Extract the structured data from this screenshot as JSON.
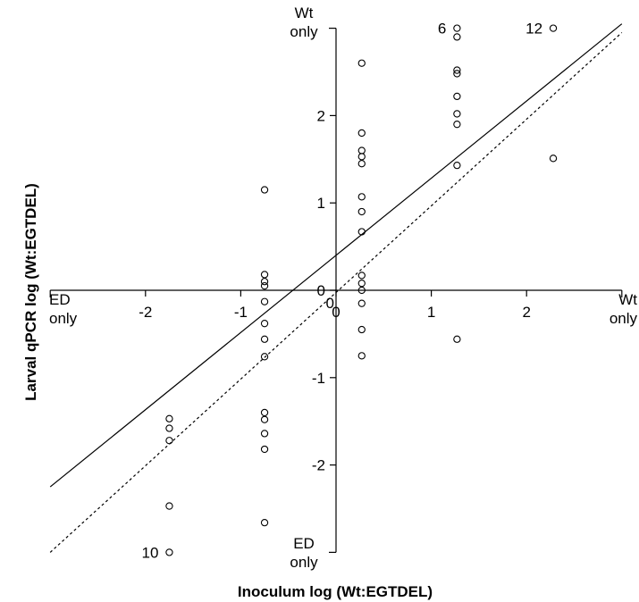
{
  "chart_data": {
    "type": "scatter",
    "xlabel": "Inoculum log (Wt:EGTDEL)",
    "ylabel": "Larval qPCR log (Wt:EGTDEL)",
    "xlim": [
      -3,
      3
    ],
    "ylim": [
      -3,
      3
    ],
    "x_ticks": [
      "-2",
      "-1",
      "0",
      "1",
      "2"
    ],
    "y_ticks": [
      "-2",
      "-1",
      "0",
      "1",
      "2"
    ],
    "x_tick_values": [
      -2,
      -1,
      0,
      1,
      2
    ],
    "y_tick_values": [
      -2,
      -1,
      0,
      1,
      2
    ],
    "end_labels": {
      "x_left": [
        "ED",
        "only"
      ],
      "x_right": [
        "Wt",
        "only"
      ],
      "y_top": [
        "Wt",
        "only"
      ],
      "y_bottom": [
        "ED",
        "only"
      ]
    },
    "count_labels": [
      {
        "text": "6",
        "x": 1.27,
        "y": 3.0
      },
      {
        "text": "12",
        "x": 2.28,
        "y": 3.0
      },
      {
        "text": "10",
        "x": -1.75,
        "y": -3.0
      }
    ],
    "points": [
      {
        "x": -1.75,
        "y": -1.47
      },
      {
        "x": -1.75,
        "y": -1.58
      },
      {
        "x": -1.75,
        "y": -1.72
      },
      {
        "x": -1.75,
        "y": -2.47
      },
      {
        "x": -1.75,
        "y": -3.0
      },
      {
        "x": -0.75,
        "y": 1.15
      },
      {
        "x": -0.75,
        "y": 0.18
      },
      {
        "x": -0.75,
        "y": 0.1
      },
      {
        "x": -0.75,
        "y": 0.05
      },
      {
        "x": -0.75,
        "y": -0.13
      },
      {
        "x": -0.75,
        "y": -0.38
      },
      {
        "x": -0.75,
        "y": -0.56
      },
      {
        "x": -0.75,
        "y": -0.76
      },
      {
        "x": -0.75,
        "y": -1.4
      },
      {
        "x": -0.75,
        "y": -1.48
      },
      {
        "x": -0.75,
        "y": -1.64
      },
      {
        "x": -0.75,
        "y": -1.82
      },
      {
        "x": -0.75,
        "y": -2.66
      },
      {
        "x": 0.27,
        "y": 2.6
      },
      {
        "x": 0.27,
        "y": 1.8
      },
      {
        "x": 0.27,
        "y": 1.6
      },
      {
        "x": 0.27,
        "y": 1.53
      },
      {
        "x": 0.27,
        "y": 1.45
      },
      {
        "x": 0.27,
        "y": 1.07
      },
      {
        "x": 0.27,
        "y": 0.9
      },
      {
        "x": 0.27,
        "y": 0.67
      },
      {
        "x": 0.27,
        "y": 0.17
      },
      {
        "x": 0.27,
        "y": 0.08
      },
      {
        "x": 0.27,
        "y": 0.0
      },
      {
        "x": 0.27,
        "y": -0.15
      },
      {
        "x": 0.27,
        "y": -0.45
      },
      {
        "x": 0.27,
        "y": -0.75
      },
      {
        "x": 1.27,
        "y": 3.0
      },
      {
        "x": 1.27,
        "y": 2.9
      },
      {
        "x": 1.27,
        "y": 2.52
      },
      {
        "x": 1.27,
        "y": 2.48
      },
      {
        "x": 1.27,
        "y": 2.22
      },
      {
        "x": 1.27,
        "y": 2.02
      },
      {
        "x": 1.27,
        "y": 1.9
      },
      {
        "x": 1.27,
        "y": 1.43
      },
      {
        "x": 1.27,
        "y": -0.56
      },
      {
        "x": 2.28,
        "y": 3.0
      },
      {
        "x": 2.28,
        "y": 1.51
      }
    ],
    "lines": [
      {
        "style": "solid",
        "x": [
          -3,
          3
        ],
        "y": [
          -2.25,
          3.05
        ]
      },
      {
        "style": "dotted",
        "x": [
          -3,
          3
        ],
        "y": [
          -3,
          2.95
        ]
      }
    ]
  }
}
